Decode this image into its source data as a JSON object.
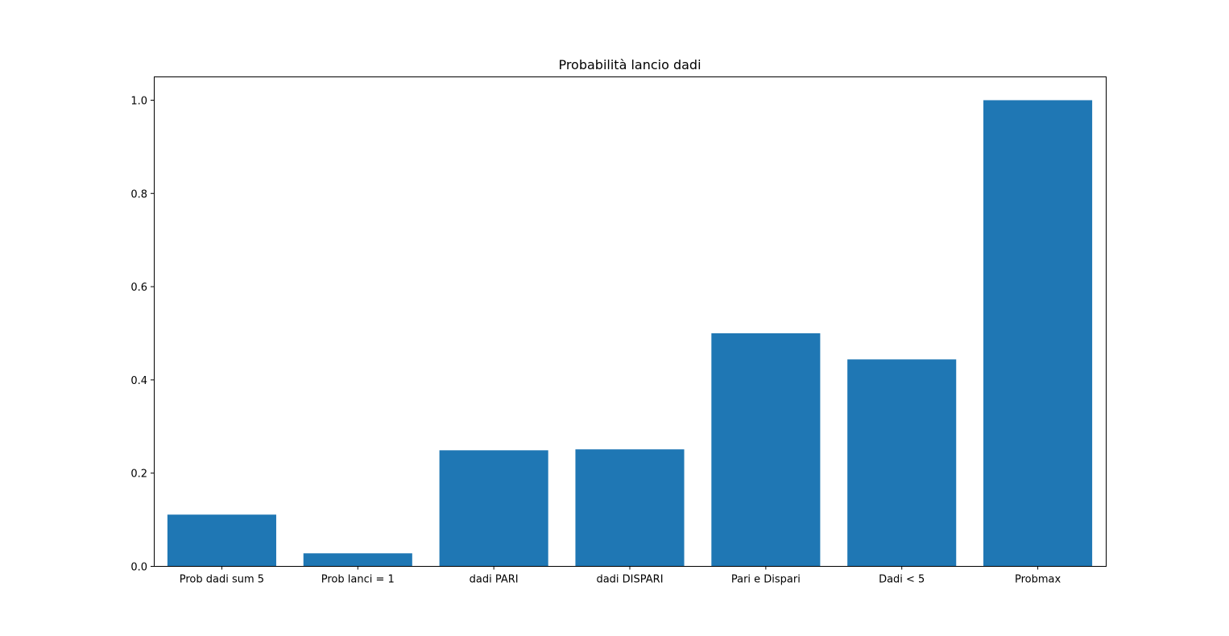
{
  "chart_data": {
    "type": "bar",
    "title": "Probabilità lancio dadi",
    "xlabel": "",
    "ylabel": "",
    "categories": [
      "Prob dadi sum 5",
      "Prob lanci = 1",
      "dadi PARI",
      "dadi DISPARI",
      "Pari e Dispari",
      "Dadi < 5",
      "Probmax"
    ],
    "values": [
      0.111,
      0.028,
      0.249,
      0.251,
      0.5,
      0.444,
      1.0
    ],
    "ylim": [
      0,
      1.05
    ],
    "yticks": [
      0.0,
      0.2,
      0.4,
      0.6,
      0.8,
      1.0
    ],
    "ytick_labels": [
      "0.0",
      "0.2",
      "0.4",
      "0.6",
      "0.8",
      "1.0"
    ],
    "bar_color": "#1f77b4",
    "grid": false,
    "legend": "none"
  }
}
